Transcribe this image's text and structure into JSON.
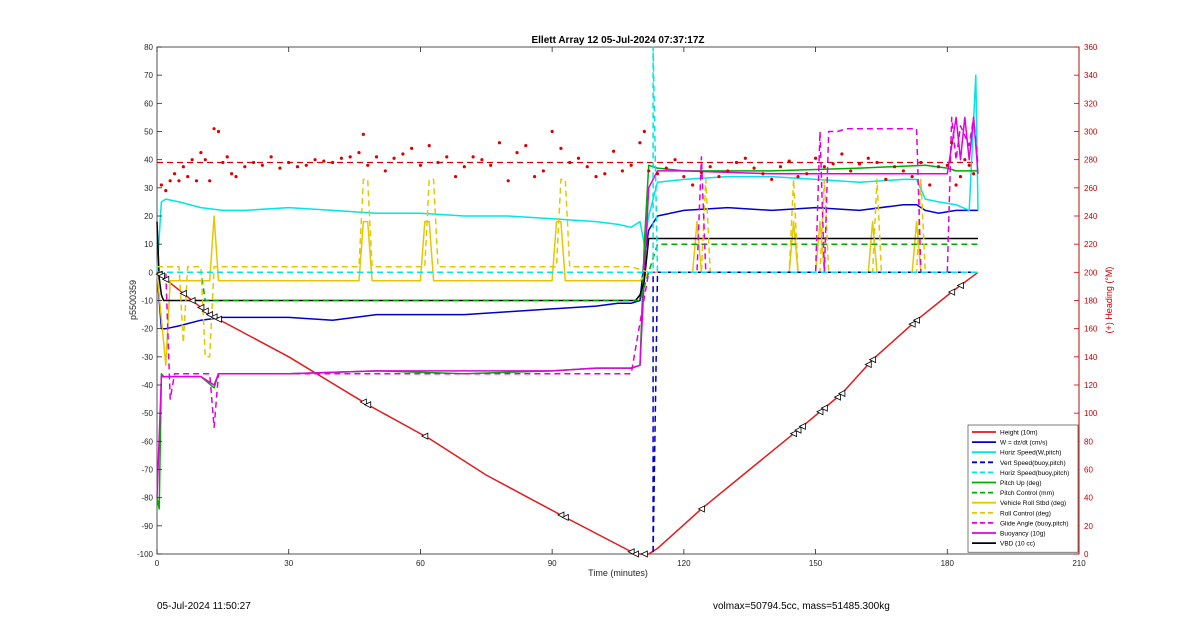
{
  "chart_data": {
    "type": "line",
    "title": "Ellett Array 12 05-Jul-2024 07:37:17Z",
    "xlabel": "Time (minutes)",
    "ylabel": "p5500359",
    "y2label": "(+) Heading (°M)",
    "xlim": [
      0,
      210
    ],
    "ylim": [
      -100,
      80
    ],
    "y2lim": [
      0,
      360
    ],
    "xticks": [
      "0",
      "30",
      "60",
      "90",
      "120",
      "150",
      "180",
      "210"
    ],
    "yticks": [
      "-100",
      "-90",
      "-80",
      "-70",
      "-60",
      "-50",
      "-40",
      "-30",
      "-20",
      "-10",
      "0",
      "10",
      "20",
      "30",
      "40",
      "50",
      "60",
      "70",
      "80"
    ],
    "y2ticks": [
      "0",
      "20",
      "40",
      "60",
      "80",
      "100",
      "120",
      "140",
      "160",
      "180",
      "200",
      "220",
      "240",
      "260",
      "280",
      "300",
      "320",
      "340",
      "360"
    ],
    "legend_position": "bottom-right",
    "colors": {
      "height": "#e41a1c",
      "w": "#0000cc",
      "horiz": "#00e5e5",
      "pitch": "#00aa00",
      "roll": "#e5c700",
      "glide": "#e000e0",
      "vbd": "#000000",
      "heading": "#dd0000"
    },
    "series": [
      {
        "name": "Height (10m)",
        "style": "solid",
        "color": "#e41a1c",
        "x": [
          0,
          12,
          30,
          48,
          62,
          75,
          93,
          109,
          112,
          114,
          124,
          135,
          146,
          156,
          163,
          173,
          181,
          187
        ],
        "y": [
          0,
          -15,
          -30,
          -47,
          -59,
          -72,
          -87,
          -100,
          -100,
          -98,
          -84,
          -70,
          -56,
          -43,
          -31,
          -17,
          -7,
          0
        ]
      },
      {
        "name": "W = dz/dt (cm/s)",
        "style": "solid",
        "color": "#0000cc",
        "x": [
          0,
          1,
          2,
          5,
          10,
          15,
          20,
          30,
          40,
          50,
          60,
          70,
          80,
          90,
          100,
          105,
          108,
          110,
          111,
          112,
          114,
          120,
          130,
          140,
          150,
          160,
          170,
          173,
          175,
          178,
          182,
          185,
          187
        ],
        "y": [
          0,
          -20,
          -20,
          -19,
          -17,
          -16,
          -16,
          -16,
          -17,
          -15,
          -15,
          -15,
          -14,
          -13,
          -12,
          -11,
          -11,
          -10,
          5,
          15,
          20,
          22,
          23,
          22,
          23,
          22,
          24,
          24,
          22,
          21,
          22,
          22,
          22
        ]
      },
      {
        "name": "Horiz Speed(W,pitch)",
        "style": "solid",
        "color": "#00e5e5",
        "x": [
          0,
          1,
          2,
          5,
          10,
          15,
          20,
          30,
          40,
          50,
          60,
          70,
          80,
          90,
          100,
          105,
          108,
          110,
          111,
          112,
          114,
          120,
          130,
          140,
          150,
          160,
          170,
          173,
          175,
          178,
          182,
          185,
          186.5,
          187
        ],
        "y": [
          0,
          25,
          26,
          25,
          23,
          22,
          22,
          23,
          22,
          21,
          21,
          20,
          20,
          19,
          18,
          17,
          16,
          18,
          10,
          20,
          32,
          33,
          34,
          34,
          33,
          32,
          33,
          33,
          26,
          25,
          24,
          22,
          70,
          22
        ]
      },
      {
        "name": "Vert Speed(buoy,pitch)",
        "style": "dashed",
        "color": "#0000cc",
        "x": [
          0,
          112,
          113,
          113,
          114,
          187
        ],
        "y": [
          0,
          0,
          0,
          -100,
          0,
          0
        ]
      },
      {
        "name": "Horiz Speed(buoy,pitch)",
        "style": "dashed",
        "color": "#00e5e5",
        "x": [
          0,
          112,
          113,
          113,
          114,
          187
        ],
        "y": [
          0,
          0,
          0,
          80,
          0,
          0
        ]
      },
      {
        "name": "Pitch Up (deg)",
        "style": "solid",
        "color": "#00aa00",
        "x": [
          0,
          0.5,
          1,
          1.5,
          2,
          5,
          10,
          13,
          14,
          20,
          30,
          50,
          70,
          90,
          100,
          108,
          110,
          111,
          112,
          114,
          120,
          140,
          160,
          175,
          180,
          182,
          187
        ],
        "y": [
          -80,
          -84,
          -36,
          -37,
          -37,
          -37,
          -37,
          -41,
          -36,
          -36,
          -36,
          -35,
          -36,
          -35,
          -34,
          -34,
          -33,
          10,
          38,
          37,
          36,
          36,
          37,
          38,
          37,
          36,
          36
        ]
      },
      {
        "name": "Pitch Control (mm)",
        "style": "dashed",
        "color": "#00aa00",
        "x": [
          0,
          2,
          10,
          11,
          12,
          50,
          100,
          110,
          112,
          114,
          187
        ],
        "y": [
          0,
          0,
          0,
          -10,
          -10,
          -10,
          -10,
          -10,
          0,
          10,
          10
        ]
      },
      {
        "name": "Vehicle Roll Stbd (deg)",
        "style": "solid",
        "color": "#e5c700",
        "x": [
          0,
          2,
          3,
          5,
          10,
          12,
          13,
          14,
          20,
          30,
          46,
          47,
          48,
          49,
          60,
          61,
          62,
          63,
          90,
          91,
          92,
          93,
          108,
          110,
          112,
          114,
          120,
          122,
          123,
          124,
          140,
          144,
          145,
          146,
          150,
          151,
          152,
          160,
          162,
          163,
          164,
          170,
          172,
          173,
          174,
          180,
          185,
          187
        ],
        "y": [
          0,
          -33,
          -3,
          -3,
          -3,
          -3,
          20,
          -3,
          -3,
          -3,
          -3,
          18,
          18,
          -3,
          -3,
          18,
          18,
          -3,
          -3,
          18,
          18,
          -3,
          -3,
          -3,
          0,
          0,
          0,
          0,
          18,
          0,
          0,
          0,
          18,
          0,
          0,
          18,
          0,
          0,
          0,
          18,
          0,
          0,
          0,
          18,
          0,
          0,
          0,
          0
        ]
      },
      {
        "name": "Roll Control (deg)",
        "style": "dashed",
        "color": "#e5c700",
        "x": [
          0,
          5,
          6,
          7,
          10,
          11,
          12,
          13,
          14,
          20,
          46,
          47,
          48,
          49,
          61,
          62,
          63,
          64,
          91,
          92,
          93,
          94,
          108,
          112,
          114,
          124,
          125,
          126,
          144,
          145,
          146,
          151,
          152,
          153,
          163,
          164,
          165,
          173,
          174,
          175,
          187
        ],
        "y": [
          2,
          2,
          -25,
          2,
          2,
          -30,
          -30,
          2,
          2,
          2,
          2,
          33,
          33,
          2,
          2,
          33,
          33,
          2,
          2,
          33,
          33,
          2,
          2,
          0,
          0,
          0,
          33,
          0,
          0,
          33,
          0,
          0,
          33,
          0,
          0,
          33,
          0,
          0,
          33,
          0,
          0
        ]
      },
      {
        "name": "Glide Angle (buoy,pitch)",
        "style": "dashed",
        "color": "#e000e0",
        "x": [
          0,
          2,
          3,
          4,
          10,
          12,
          13,
          14,
          20,
          108,
          112,
          114,
          122,
          123,
          124,
          125,
          150,
          151,
          152,
          153,
          155,
          157,
          160,
          165,
          170,
          172,
          173,
          174,
          180,
          181,
          182,
          183,
          185,
          186,
          187
        ],
        "y": [
          0,
          0,
          -45,
          -36,
          -36,
          -36,
          -55,
          -36,
          -36,
          -36,
          0,
          0,
          0,
          0,
          41,
          0,
          0,
          50,
          0,
          50,
          50,
          51,
          51,
          51,
          51,
          51,
          51,
          0,
          0,
          55,
          40,
          52,
          45,
          55,
          38
        ]
      },
      {
        "name": "Buoyancy (10g)",
        "style": "solid",
        "color": "#e000e0",
        "x": [
          0,
          1,
          2,
          5,
          10,
          13,
          14,
          20,
          30,
          50,
          70,
          90,
          100,
          108,
          110,
          112,
          114,
          120,
          140,
          160,
          178,
          180,
          181,
          182,
          183,
          184,
          185,
          186,
          187
        ],
        "y": [
          -80,
          -37,
          -37,
          -37,
          -37,
          -40,
          -36,
          -36,
          -36,
          -35,
          -35,
          -35,
          -34,
          -34,
          -33,
          30,
          36,
          36,
          35,
          35,
          35,
          35,
          45,
          55,
          40,
          55,
          40,
          55,
          35
        ]
      },
      {
        "name": "VBD (10 cc)",
        "style": "solid",
        "color": "#000000",
        "x": [
          0,
          0.5,
          1,
          1.5,
          2,
          50,
          100,
          109,
          110,
          111,
          112,
          114,
          120,
          140,
          160,
          180,
          187
        ],
        "y": [
          18,
          -2,
          -8,
          -10,
          -10,
          -10,
          -10,
          -10,
          -8,
          -3,
          12,
          12,
          12,
          12,
          12,
          12,
          12
        ]
      }
    ],
    "heading_series": {
      "name": "Heading",
      "axis": "right",
      "style": "dots",
      "color": "#dd0000",
      "x": [
        1,
        2,
        3,
        4,
        5,
        6,
        7,
        8,
        9,
        10,
        11,
        12,
        13,
        14,
        15,
        16,
        17,
        18,
        20,
        22,
        24,
        26,
        28,
        30,
        32,
        34,
        36,
        38,
        40,
        42,
        44,
        46,
        47,
        48,
        50,
        52,
        54,
        56,
        58,
        60,
        62,
        64,
        66,
        68,
        70,
        72,
        74,
        76,
        78,
        80,
        82,
        84,
        86,
        88,
        90,
        92,
        94,
        96,
        98,
        100,
        102,
        104,
        106,
        108,
        110,
        111,
        112,
        114,
        116,
        118,
        120,
        122,
        124,
        126,
        128,
        130,
        132,
        134,
        136,
        138,
        140,
        142,
        144,
        146,
        148,
        150,
        152,
        154,
        156,
        158,
        160,
        162,
        164,
        166,
        168,
        170,
        172,
        174,
        176,
        178,
        180,
        181,
        182,
        183,
        184,
        185,
        186
      ],
      "y": [
        262,
        258,
        265,
        270,
        265,
        275,
        268,
        280,
        265,
        285,
        280,
        265,
        302,
        300,
        278,
        282,
        270,
        268,
        275,
        278,
        276,
        282,
        274,
        278,
        275,
        276,
        280,
        279,
        278,
        281,
        282,
        285,
        298,
        276,
        282,
        272,
        281,
        284,
        288,
        276,
        290,
        278,
        282,
        268,
        275,
        282,
        280,
        276,
        292,
        265,
        285,
        290,
        268,
        272,
        300,
        288,
        278,
        281,
        275,
        268,
        270,
        286,
        272,
        276,
        292,
        300,
        272,
        270,
        274,
        280,
        268,
        262,
        271,
        275,
        268,
        272,
        278,
        281,
        274,
        270,
        266,
        275,
        279,
        268,
        270,
        281,
        275,
        277,
        284,
        272,
        277,
        281,
        278,
        266,
        275,
        272,
        268,
        278,
        262,
        275,
        276,
        292,
        262,
        268,
        280,
        276,
        270
      ]
    },
    "heading_ref": 278,
    "legend_entries": [
      {
        "label": "Height (10m)",
        "color": "#e41a1c",
        "style": "solid"
      },
      {
        "label": "W = dz/dt (cm/s)",
        "color": "#0000cc",
        "style": "solid"
      },
      {
        "label": "Horiz Speed(W,pitch)",
        "color": "#00e5e5",
        "style": "solid"
      },
      {
        "label": "Vert Speed(buoy,pitch)",
        "color": "#0000cc",
        "style": "dashed"
      },
      {
        "label": "Horiz Speed(buoy,pitch)",
        "color": "#00e5e5",
        "style": "dashed"
      },
      {
        "label": "Pitch Up (deg)",
        "color": "#00aa00",
        "style": "solid"
      },
      {
        "label": "Pitch Control (mm)",
        "color": "#00aa00",
        "style": "dashed"
      },
      {
        "label": "Vehicle Roll Stbd (deg)",
        "color": "#e5c700",
        "style": "solid"
      },
      {
        "label": "Roll Control (deg)",
        "color": "#e5c700",
        "style": "dashed"
      },
      {
        "label": "Glide Angle (buoy,pitch)",
        "color": "#e000e0",
        "style": "dashed"
      },
      {
        "label": "Buoyancy (10g)",
        "color": "#e000e0",
        "style": "solid"
      },
      {
        "label": "VBD (10 cc)",
        "color": "#000000",
        "style": "solid"
      }
    ],
    "markers_x": [
      0.5,
      1,
      2,
      6,
      8,
      10,
      11,
      12,
      13,
      14,
      47,
      48,
      61,
      92,
      93,
      108,
      109,
      111,
      124,
      145,
      146,
      147,
      151,
      152,
      155,
      156,
      162,
      163,
      172,
      173,
      181,
      183
    ]
  },
  "footer": {
    "left": "05-Jul-2024 11:50:27",
    "right": "volmax=50794.5cc, mass=51485.300kg"
  }
}
